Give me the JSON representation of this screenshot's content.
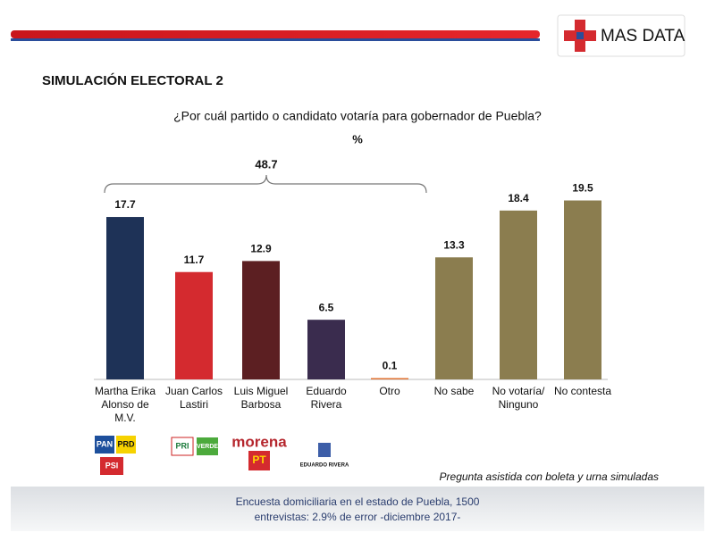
{
  "brand": "MAS DATA",
  "chart_data": {
    "type": "bar",
    "title": "SIMULACIÓN ELECTORAL 2",
    "subtitle": "¿Por cuál partido o candidato votaría para gobernador de Puebla?",
    "unit": "%",
    "categories": [
      [
        "Martha Erika",
        "Alonso de",
        "M.V."
      ],
      [
        "Juan Carlos",
        "Lastiri"
      ],
      [
        "Luis Miguel",
        "Barbosa"
      ],
      [
        "Eduardo",
        "Rivera"
      ],
      [
        "Otro"
      ],
      [
        "No sabe"
      ],
      [
        "No votaría/",
        "Ninguno"
      ],
      [
        "No contesta"
      ]
    ],
    "values": [
      17.7,
      11.7,
      12.9,
      6.5,
      0.1,
      13.3,
      18.4,
      19.5
    ],
    "colors": [
      "#1e3257",
      "#d42a2f",
      "#5c1f22",
      "#3a2c4e",
      "#e07030",
      "#8b7d4f",
      "#8b7d4f",
      "#8b7d4f"
    ],
    "bracket_total": 48.7,
    "note": "Pregunta asistida con boleta y urna simuladas"
  },
  "logos": [
    "PAN",
    "PRD",
    "PSI",
    "PRI",
    "VERDE",
    "morena",
    "PT",
    "EDUARDO RIVERA"
  ],
  "footer": [
    "Encuesta domiciliaria en el estado de Puebla, 1500",
    "entrevistas: 2.9% de error -diciembre 2017-"
  ]
}
